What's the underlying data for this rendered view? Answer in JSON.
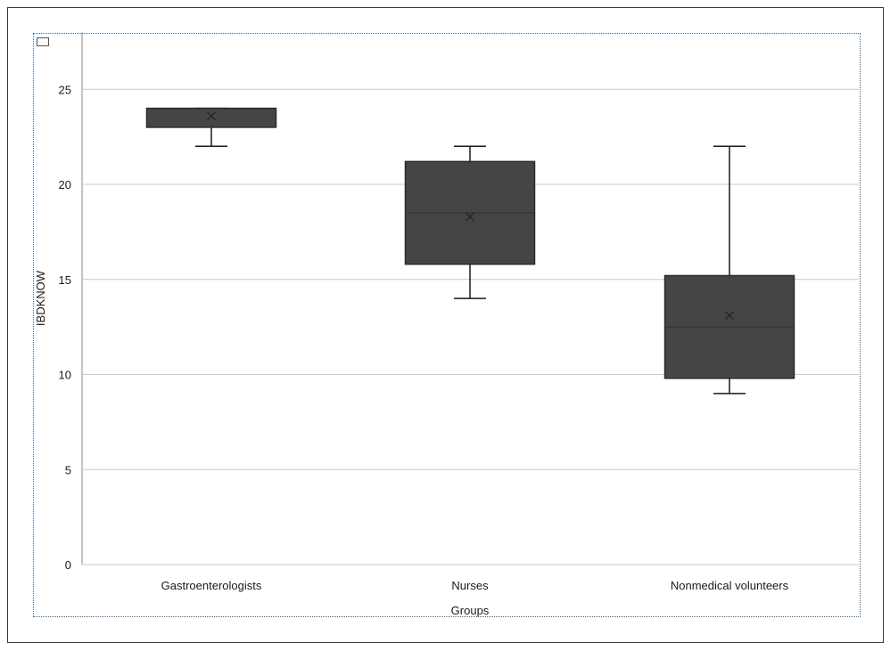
{
  "chart_data": {
    "type": "box",
    "title": "",
    "xlabel": "Groups",
    "ylabel": "IBDKNOW",
    "ylim": [
      0,
      28
    ],
    "yticks": [
      0,
      5,
      10,
      15,
      20,
      25
    ],
    "grid": true,
    "colors": {
      "box_fill": "#454545",
      "box_stroke": "#2a2a2a",
      "grid": "#c8c8c8",
      "whisker": "#1a1a1a",
      "mean_marker": "#222222"
    },
    "categories": [
      "Gastroenterologists",
      "Nurses",
      "Nonmedical volunteers"
    ],
    "boxes": [
      {
        "category": "Gastroenterologists",
        "min": 22,
        "q1": 23,
        "median": 23,
        "q3": 24,
        "max": 24,
        "mean": 23.6
      },
      {
        "category": "Nurses",
        "min": 14,
        "q1": 15.8,
        "median": 18.5,
        "q3": 21.2,
        "max": 22,
        "mean": 18.3
      },
      {
        "category": "Nonmedical volunteers",
        "min": 9,
        "q1": 9.8,
        "median": 12.5,
        "q3": 15.2,
        "max": 22,
        "mean": 13.1
      }
    ]
  }
}
